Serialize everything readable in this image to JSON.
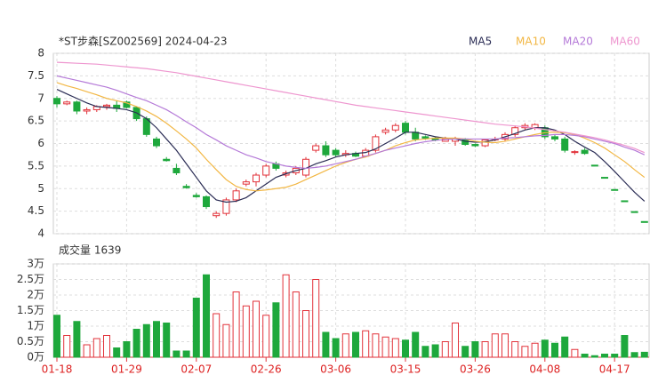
{
  "chart_data": [
    {
      "type": "candlestick",
      "title": "*ST步森[SZ002569] 2024-04-23",
      "up_color": "#e2323a",
      "down_color": "#1ea83c",
      "open": [
        7.0,
        6.88,
        6.92,
        6.72,
        6.75,
        6.82,
        6.85,
        6.92,
        6.8,
        6.55,
        6.1,
        5.65,
        5.45,
        5.05,
        4.85,
        4.82,
        4.4,
        4.45,
        4.75,
        5.1,
        5.15,
        5.3,
        5.55,
        5.3,
        5.35,
        5.3,
        5.85,
        5.95,
        5.85,
        5.75,
        5.78,
        5.72,
        5.85,
        6.25,
        6.3,
        6.45,
        6.25,
        6.15,
        6.12,
        6.05,
        6.05,
        6.1,
        5.98,
        5.95,
        6.08,
        6.1,
        6.2,
        6.35,
        6.35,
        6.35,
        6.15,
        6.1,
        5.8,
        5.85,
        5.52,
        5.25,
        4.98,
        4.73,
        4.49,
        4.27
      ],
      "high": [
        7.05,
        6.95,
        6.95,
        6.8,
        6.85,
        6.88,
        6.95,
        6.95,
        6.82,
        6.6,
        6.15,
        5.7,
        5.55,
        5.1,
        4.9,
        4.85,
        4.5,
        4.8,
        5.0,
        5.2,
        5.35,
        5.55,
        5.6,
        5.4,
        5.5,
        5.7,
        6.0,
        6.05,
        5.9,
        5.85,
        5.82,
        5.9,
        6.2,
        6.35,
        6.45,
        6.5,
        6.35,
        6.18,
        6.15,
        6.15,
        6.15,
        6.12,
        6.0,
        6.1,
        6.15,
        6.25,
        6.4,
        6.45,
        6.45,
        6.4,
        6.2,
        6.15,
        5.85,
        5.9,
        5.52,
        5.25,
        4.98,
        4.73,
        4.49,
        4.27
      ],
      "low": [
        6.8,
        6.85,
        6.65,
        6.65,
        6.7,
        6.75,
        6.7,
        6.78,
        6.5,
        6.15,
        5.9,
        5.6,
        5.3,
        5.0,
        4.8,
        4.55,
        4.35,
        4.4,
        4.7,
        5.05,
        5.05,
        5.25,
        5.4,
        5.25,
        5.3,
        5.25,
        5.8,
        5.7,
        5.7,
        5.7,
        5.7,
        5.7,
        5.8,
        6.2,
        6.25,
        6.2,
        6.05,
        6.08,
        6.05,
        6.05,
        5.95,
        5.95,
        5.92,
        5.92,
        6.05,
        6.05,
        6.15,
        6.3,
        6.3,
        6.1,
        6.05,
        5.8,
        5.75,
        5.75,
        5.5,
        5.23,
        4.96,
        4.71,
        4.47,
        4.25
      ],
      "close": [
        6.88,
        6.92,
        6.72,
        6.75,
        6.82,
        6.85,
        6.78,
        6.8,
        6.55,
        6.2,
        5.95,
        5.62,
        5.35,
        5.02,
        4.82,
        4.6,
        4.45,
        4.75,
        4.95,
        5.15,
        5.3,
        5.5,
        5.45,
        5.35,
        5.45,
        5.65,
        5.95,
        5.75,
        5.75,
        5.78,
        5.72,
        5.85,
        6.15,
        6.3,
        6.4,
        6.25,
        6.1,
        6.12,
        6.08,
        6.1,
        6.1,
        5.98,
        5.95,
        6.08,
        6.1,
        6.2,
        6.35,
        6.4,
        6.42,
        6.15,
        6.1,
        5.85,
        5.82,
        5.78,
        5.5,
        5.23,
        4.96,
        4.71,
        4.47,
        4.25
      ],
      "series": [
        {
          "name": "MA5",
          "color": "#2b2d55",
          "values": [
            7.2,
            7.1,
            7.0,
            6.9,
            6.82,
            6.8,
            6.78,
            6.75,
            6.68,
            6.55,
            6.35,
            6.1,
            5.85,
            5.55,
            5.25,
            4.95,
            4.75,
            4.7,
            4.72,
            4.8,
            4.95,
            5.1,
            5.25,
            5.33,
            5.4,
            5.45,
            5.55,
            5.62,
            5.7,
            5.75,
            5.78,
            5.8,
            5.88,
            6.0,
            6.12,
            6.25,
            6.25,
            6.2,
            6.15,
            6.12,
            6.1,
            6.05,
            6.03,
            6.04,
            6.08,
            6.15,
            6.22,
            6.3,
            6.35,
            6.35,
            6.3,
            6.2,
            6.05,
            5.92,
            5.8,
            5.6,
            5.38,
            5.15,
            4.92,
            4.72
          ]
        },
        {
          "name": "MA10",
          "color": "#f2b744",
          "values": [
            7.35,
            7.28,
            7.22,
            7.15,
            7.08,
            7.0,
            6.95,
            6.9,
            6.82,
            6.72,
            6.6,
            6.45,
            6.28,
            6.1,
            5.9,
            5.65,
            5.42,
            5.2,
            5.05,
            4.98,
            4.95,
            4.97,
            5.0,
            5.03,
            5.1,
            5.2,
            5.3,
            5.4,
            5.5,
            5.58,
            5.65,
            5.7,
            5.78,
            5.85,
            5.95,
            6.02,
            6.08,
            6.1,
            6.12,
            6.12,
            6.12,
            6.1,
            6.05,
            6.03,
            6.02,
            6.05,
            6.1,
            6.15,
            6.2,
            6.24,
            6.25,
            6.24,
            6.2,
            6.12,
            6.02,
            5.9,
            5.75,
            5.6,
            5.42,
            5.25
          ]
        },
        {
          "name": "MA20",
          "color": "#b57ad8",
          "values": [
            7.5,
            7.45,
            7.4,
            7.35,
            7.3,
            7.25,
            7.18,
            7.1,
            7.02,
            6.95,
            6.85,
            6.75,
            6.62,
            6.48,
            6.35,
            6.2,
            6.08,
            5.95,
            5.85,
            5.75,
            5.68,
            5.6,
            5.55,
            5.5,
            5.47,
            5.45,
            5.47,
            5.5,
            5.55,
            5.6,
            5.65,
            5.72,
            5.78,
            5.85,
            5.9,
            5.95,
            6.0,
            6.04,
            6.07,
            6.09,
            6.1,
            6.1,
            6.1,
            6.1,
            6.1,
            6.12,
            6.13,
            6.15,
            6.17,
            6.18,
            6.2,
            6.2,
            6.18,
            6.15,
            6.1,
            6.05,
            6.0,
            5.92,
            5.85,
            5.75
          ]
        },
        {
          "name": "MA60",
          "color": "#ee96cf",
          "values": [
            7.8,
            7.79,
            7.78,
            7.77,
            7.76,
            7.74,
            7.72,
            7.7,
            7.68,
            7.66,
            7.63,
            7.6,
            7.57,
            7.53,
            7.49,
            7.45,
            7.41,
            7.37,
            7.33,
            7.29,
            7.25,
            7.21,
            7.17,
            7.13,
            7.09,
            7.05,
            7.01,
            6.97,
            6.93,
            6.89,
            6.85,
            6.82,
            6.79,
            6.76,
            6.73,
            6.7,
            6.67,
            6.64,
            6.61,
            6.58,
            6.55,
            6.52,
            6.49,
            6.46,
            6.43,
            6.41,
            6.39,
            6.37,
            6.34,
            6.31,
            6.28,
            6.25,
            6.21,
            6.17,
            6.13,
            6.08,
            6.02,
            5.96,
            5.89,
            5.8
          ]
        }
      ],
      "ylim": [
        4,
        8
      ],
      "yticks": [
        4,
        4.5,
        5,
        5.5,
        6,
        6.5,
        7,
        7.5,
        8
      ],
      "grid": true
    },
    {
      "type": "bar",
      "title": "成交量 1639",
      "categories": [
        "01-18",
        null,
        null,
        null,
        null,
        null,
        null,
        "01-29",
        null,
        null,
        null,
        null,
        null,
        null,
        "02-07",
        null,
        null,
        null,
        null,
        null,
        null,
        "02-26",
        null,
        null,
        null,
        null,
        null,
        null,
        "03-06",
        null,
        null,
        null,
        null,
        null,
        null,
        "03-15",
        null,
        null,
        null,
        null,
        null,
        null,
        "03-26",
        null,
        null,
        null,
        null,
        null,
        null,
        "04-08",
        null,
        null,
        null,
        null,
        null,
        null,
        "04-17",
        null,
        null,
        null
      ],
      "values": [
        1.35,
        0.7,
        1.15,
        0.4,
        0.6,
        0.7,
        0.3,
        0.5,
        0.9,
        1.05,
        1.15,
        1.1,
        0.2,
        0.2,
        1.9,
        2.65,
        1.4,
        1.05,
        2.1,
        1.65,
        1.8,
        1.35,
        1.75,
        2.65,
        2.1,
        1.5,
        2.5,
        0.8,
        0.6,
        0.75,
        0.8,
        0.85,
        0.75,
        0.65,
        0.6,
        0.55,
        0.8,
        0.35,
        0.4,
        0.5,
        1.1,
        0.35,
        0.5,
        0.5,
        0.75,
        0.75,
        0.5,
        0.35,
        0.45,
        0.55,
        0.45,
        0.65,
        0.25,
        0.1,
        0.05,
        0.1,
        0.1,
        0.7,
        0.15,
        0.16
      ],
      "ylim": [
        0,
        3
      ],
      "yticks": [
        {
          "value": 0,
          "label": "0万"
        },
        {
          "value": 0.5,
          "label": "0.5万"
        },
        {
          "value": 1,
          "label": "1万"
        },
        {
          "value": 1.5,
          "label": "1.5万"
        },
        {
          "value": 2,
          "label": "2万"
        },
        {
          "value": 2.5,
          "label": "2.5万"
        },
        {
          "value": 3,
          "label": "3万"
        }
      ],
      "grid": true
    }
  ]
}
